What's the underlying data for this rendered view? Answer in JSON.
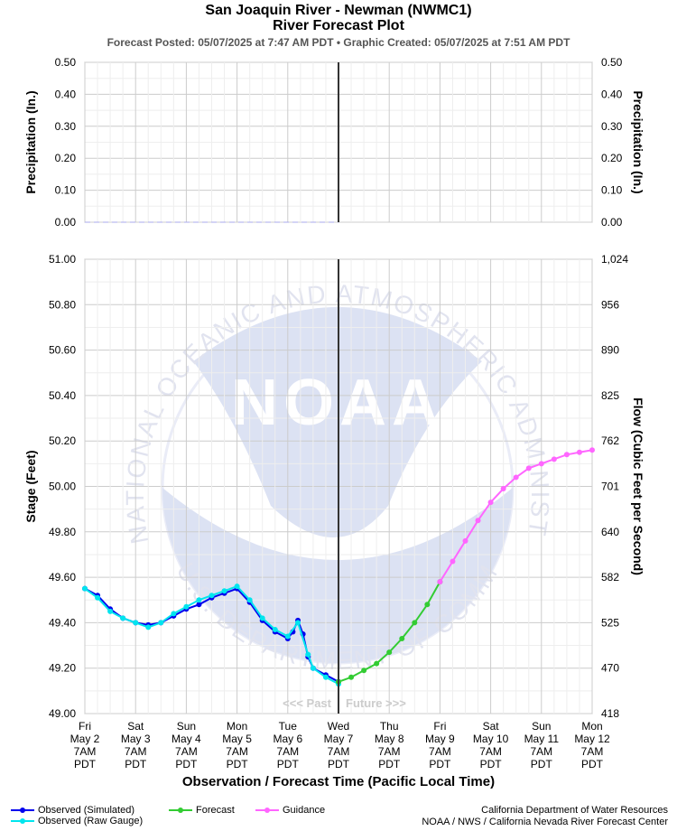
{
  "header": {
    "title": "San Joaquin River - Newman (NWMC1)",
    "subtitle": "River Forecast Plot",
    "meta": "Forecast Posted: 05/07/2025 at 7:47 AM PDT  •  Graphic Created: 05/07/2025 at 7:51 AM PDT"
  },
  "chart_data": [
    {
      "type": "line",
      "title": "",
      "ylabel": "Precipitation (In.)",
      "y2label": "Precipitation (In.)",
      "ylim": [
        0,
        0.5
      ],
      "yticks": [
        "0.00",
        "0.10",
        "0.20",
        "0.30",
        "0.40",
        "0.50"
      ],
      "series": [
        {
          "name": "",
          "color": "#aaaaee",
          "style": "dashed",
          "x": [
            0,
            5
          ],
          "values": [
            0,
            0
          ]
        }
      ]
    },
    {
      "type": "line",
      "title": "",
      "xlabel": "Observation / Forecast Time (Pacific Local Time)",
      "ylabel": "Stage (Feet)",
      "y2label": "Flow (Cubic Feet per Second)",
      "ylim": [
        49.0,
        51.0
      ],
      "yticks": [
        "49.00",
        "49.20",
        "49.40",
        "49.60",
        "49.80",
        "50.00",
        "50.20",
        "50.40",
        "50.60",
        "50.80",
        "51.00"
      ],
      "y2ticks": [
        "418",
        "470",
        "525",
        "582",
        "640",
        "701",
        "762",
        "825",
        "890",
        "956",
        "1,024"
      ],
      "xticks": [
        [
          "Fri",
          "May 2",
          "7AM",
          "PDT"
        ],
        [
          "Sat",
          "May 3",
          "7AM",
          "PDT"
        ],
        [
          "Sun",
          "May 4",
          "7AM",
          "PDT"
        ],
        [
          "Mon",
          "May 5",
          "7AM",
          "PDT"
        ],
        [
          "Tue",
          "May 6",
          "7AM",
          "PDT"
        ],
        [
          "Wed",
          "May 7",
          "7AM",
          "PDT"
        ],
        [
          "Thu",
          "May 8",
          "7AM",
          "PDT"
        ],
        [
          "Fri",
          "May 9",
          "7AM",
          "PDT"
        ],
        [
          "Sat",
          "May 10",
          "7AM",
          "PDT"
        ],
        [
          "Sun",
          "May 11",
          "7AM",
          "PDT"
        ],
        [
          "Mon",
          "May 12",
          "7AM",
          "PDT"
        ]
      ],
      "now_x": 5,
      "past_label": "<<< Past",
      "future_label": "Future >>>",
      "series": [
        {
          "name": "Observed (Simulated)",
          "color": "#0000ee",
          "x": [
            0.0,
            0.25,
            0.5,
            0.75,
            1.0,
            1.25,
            1.5,
            1.75,
            2.0,
            2.25,
            2.5,
            2.75,
            3.0,
            3.25,
            3.5,
            3.75,
            4.0,
            4.1,
            4.2,
            4.3,
            4.4,
            4.5,
            4.75,
            5.0
          ],
          "values": [
            49.55,
            49.52,
            49.46,
            49.42,
            49.4,
            49.39,
            49.4,
            49.43,
            49.46,
            49.48,
            49.51,
            49.53,
            49.55,
            49.49,
            49.41,
            49.36,
            49.33,
            49.36,
            49.41,
            49.35,
            49.25,
            49.2,
            49.17,
            49.14
          ]
        },
        {
          "name": "Observed (Raw Gauge)",
          "color": "#00e5ee",
          "x": [
            0.0,
            0.25,
            0.5,
            0.75,
            1.0,
            1.25,
            1.5,
            1.75,
            2.0,
            2.25,
            2.5,
            2.75,
            3.0,
            3.25,
            3.5,
            3.75,
            4.0,
            4.2,
            4.4,
            4.5,
            4.75,
            5.0
          ],
          "values": [
            49.55,
            49.51,
            49.45,
            49.42,
            49.4,
            49.38,
            49.4,
            49.44,
            49.47,
            49.5,
            49.52,
            49.54,
            49.56,
            49.5,
            49.42,
            49.37,
            49.34,
            49.4,
            49.26,
            49.2,
            49.16,
            49.13
          ]
        },
        {
          "name": "Forecast",
          "color": "#33cc33",
          "x": [
            5.0,
            5.25,
            5.5,
            5.75,
            6.0,
            6.25,
            6.5,
            6.75,
            7.0
          ],
          "values": [
            49.14,
            49.16,
            49.19,
            49.22,
            49.27,
            49.33,
            49.4,
            49.48,
            49.58
          ]
        },
        {
          "name": "Guidance",
          "color": "#ff66ff",
          "x": [
            7.0,
            7.25,
            7.5,
            7.75,
            8.0,
            8.25,
            8.5,
            8.75,
            9.0,
            9.25,
            9.5,
            9.75,
            10.0
          ],
          "values": [
            49.58,
            49.67,
            49.76,
            49.85,
            49.93,
            49.99,
            50.04,
            50.08,
            50.1,
            50.12,
            50.14,
            50.15,
            50.16
          ]
        }
      ]
    }
  ],
  "legend": [
    {
      "label": "Observed (Simulated)",
      "color": "#0000ee"
    },
    {
      "label": "Observed (Raw Gauge)",
      "color": "#00e5ee"
    },
    {
      "label": "Forecast",
      "color": "#33cc33"
    },
    {
      "label": "Guidance",
      "color": "#ff66ff"
    }
  ],
  "footer": {
    "line1": "California Department of Water Resources",
    "line2": "NOAA / NWS / California Nevada River Forecast Center"
  },
  "watermark": {
    "logo_text": "NOAA",
    "ring_top": "NATIONAL OCEANIC AND ATMOSPHERIC ADMINISTRATION",
    "ring_bottom": "U.S. DEPARTMENT OF COMMERCE"
  }
}
